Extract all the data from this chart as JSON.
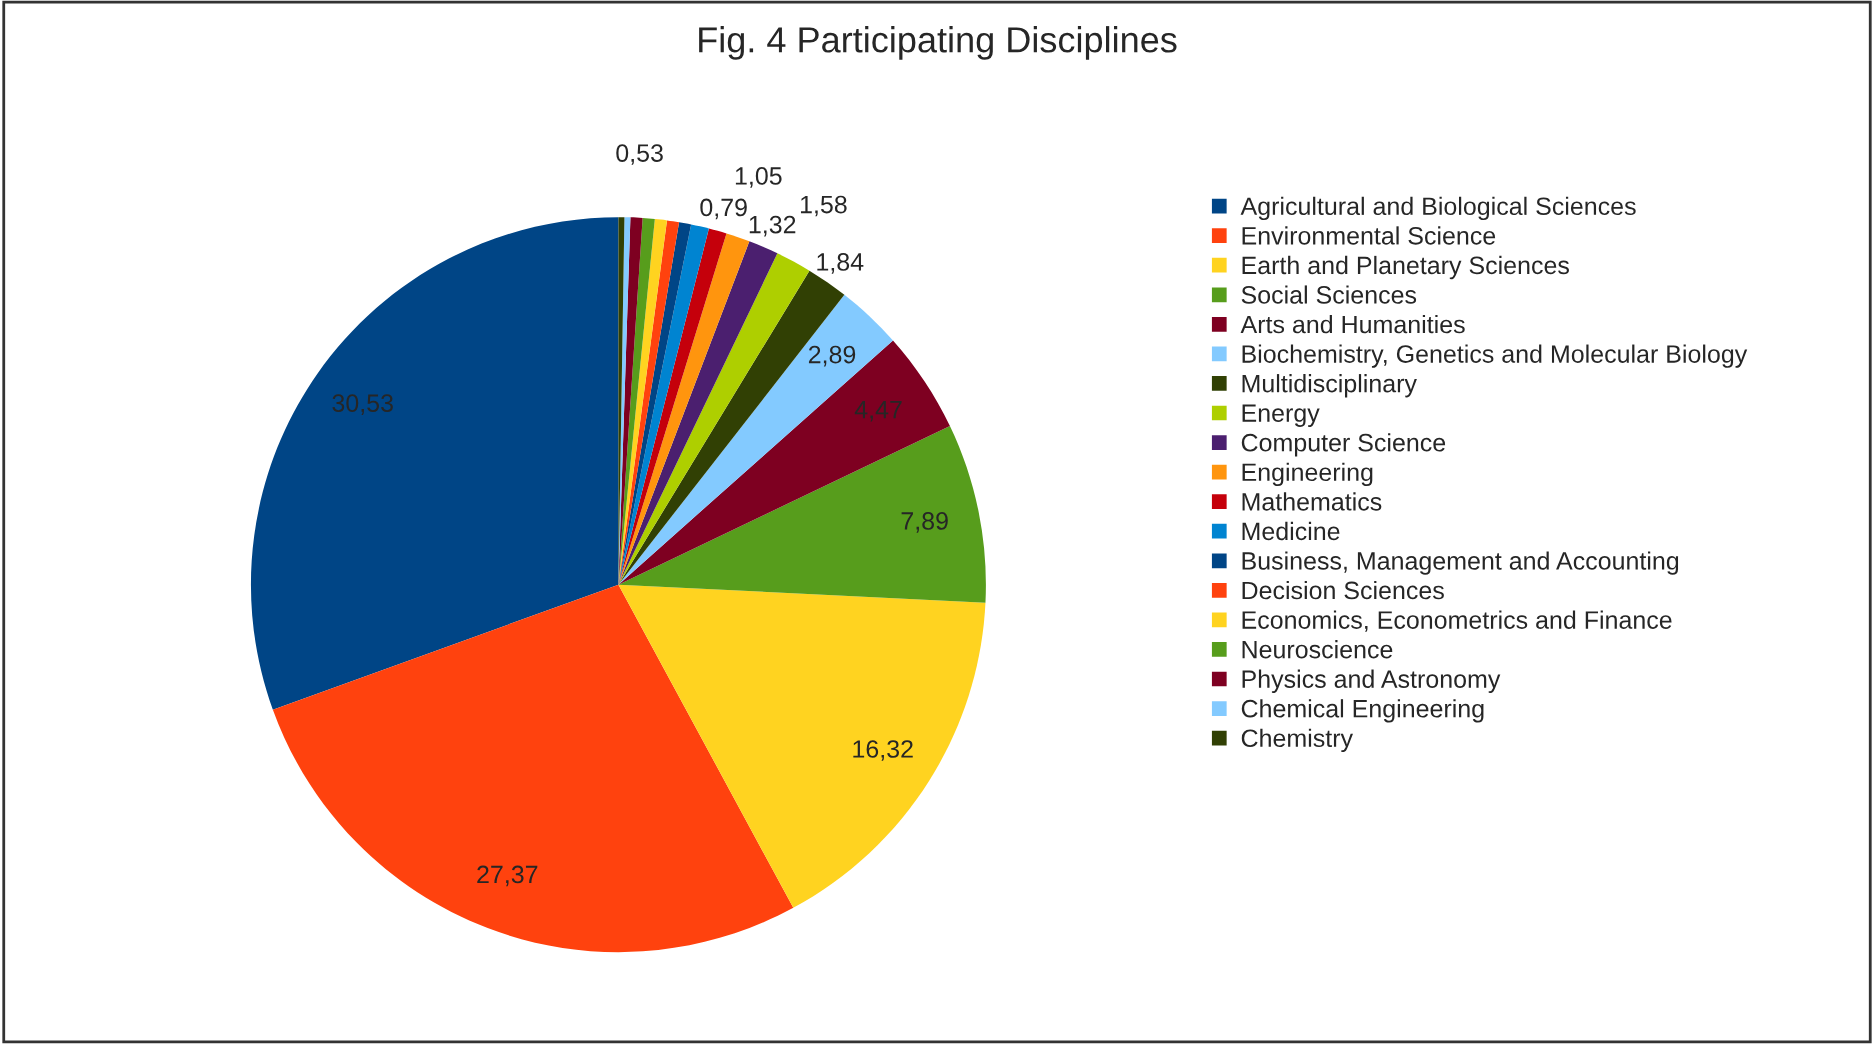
{
  "chart_data": {
    "type": "pie",
    "title": "Fig. 4 Participating Disciplines",
    "categories": [
      "Agricultural and Biological Sciences",
      "Environmental Science",
      "Earth and Planetary Sciences",
      "Social Sciences",
      "Arts and Humanities",
      "Biochemistry, Genetics and Molecular Biology",
      "Multidisciplinary",
      "Energy",
      "Computer Science",
      "Engineering",
      "Mathematics",
      "Medicine",
      "Business, Management and Accounting",
      "Decision Sciences",
      "Economics, Econometrics and Finance",
      "Neuroscience",
      "Physics and Astronomy",
      "Chemical Engineering",
      "Chemistry"
    ],
    "values": [
      30.53,
      27.37,
      16.32,
      7.89,
      4.47,
      2.89,
      1.84,
      1.58,
      1.32,
      1.05,
      0.79,
      0.79,
      0.53,
      0.53,
      0.53,
      0.53,
      0.53,
      0.26,
      0.26
    ],
    "value_labels": [
      "30,53",
      "27,37",
      "16,32",
      "7,89",
      "4,47",
      "2,89",
      "1,84",
      "1,58",
      "1,32",
      "1,05",
      "0,79",
      null,
      null,
      null,
      null,
      null,
      "0,53",
      null,
      null
    ],
    "colors": [
      "#004586",
      "#ff420e",
      "#ffd320",
      "#579d1c",
      "#7e0021",
      "#83caff",
      "#314004",
      "#aecf00",
      "#4b1f6f",
      "#ff950e",
      "#c5000b",
      "#0084d1",
      "#004586",
      "#ff420e",
      "#ffd320",
      "#579d1c",
      "#7e0021",
      "#83caff",
      "#314004"
    ],
    "legend": "right"
  }
}
